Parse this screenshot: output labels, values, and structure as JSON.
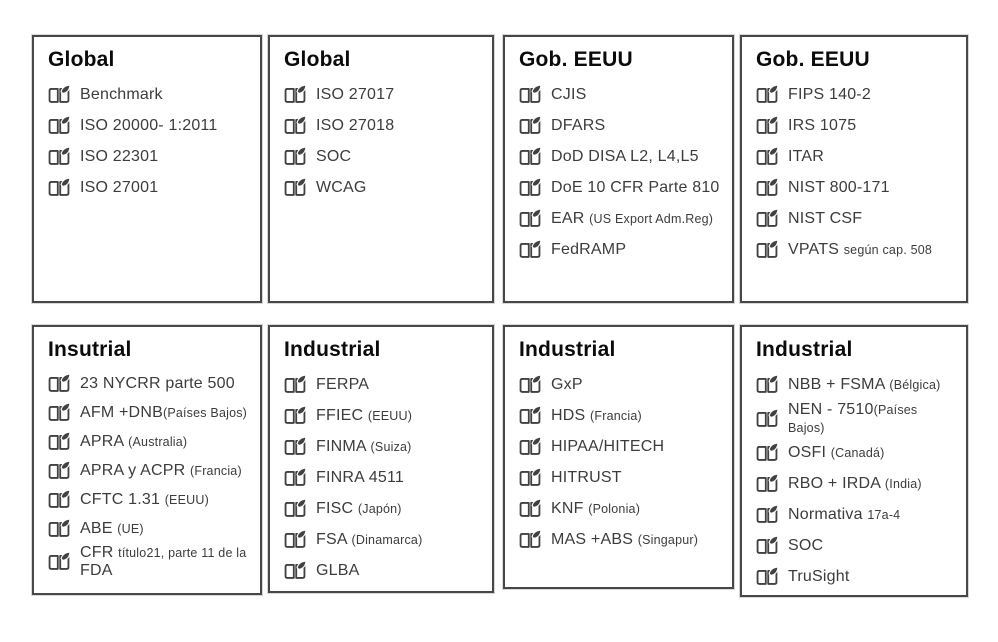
{
  "colors": {
    "background": "#ffffff",
    "card_border": "#474747",
    "title_text": "#0b0b0b",
    "item_text": "#3c3c3c",
    "icon": "#414141"
  },
  "icon_legend": "open-book-icon",
  "cards": [
    {
      "title": "Global",
      "items": [
        {
          "segments": [
            {
              "text": "Benchmark",
              "small": false
            }
          ]
        },
        {
          "segments": [
            {
              "text": "ISO 20000- 1:2011",
              "small": false
            }
          ]
        },
        {
          "segments": [
            {
              "text": "ISO 22301",
              "small": false
            }
          ]
        },
        {
          "segments": [
            {
              "text": "ISO 27001",
              "small": false
            }
          ]
        }
      ]
    },
    {
      "title": "Global",
      "items": [
        {
          "segments": [
            {
              "text": "ISO 27017",
              "small": false
            }
          ]
        },
        {
          "segments": [
            {
              "text": "ISO 27018",
              "small": false
            }
          ]
        },
        {
          "segments": [
            {
              "text": "SOC",
              "small": false
            }
          ]
        },
        {
          "segments": [
            {
              "text": "WCAG",
              "small": false
            }
          ]
        }
      ]
    },
    {
      "title": "Gob. EEUU",
      "items": [
        {
          "segments": [
            {
              "text": "CJIS",
              "small": false
            }
          ]
        },
        {
          "segments": [
            {
              "text": "DFARS",
              "small": false
            }
          ]
        },
        {
          "segments": [
            {
              "text": "DoD DISA L2, L4,L5",
              "small": false
            }
          ]
        },
        {
          "segments": [
            {
              "text": "DoE 10 CFR Parte 810",
              "small": false
            }
          ]
        },
        {
          "segments": [
            {
              "text": "EAR ",
              "small": false
            },
            {
              "text": "(US Export Adm.Reg)",
              "small": true
            }
          ]
        },
        {
          "segments": [
            {
              "text": "FedRAMP",
              "small": false
            }
          ]
        }
      ]
    },
    {
      "title": "Gob. EEUU",
      "items": [
        {
          "segments": [
            {
              "text": "FIPS 140-2",
              "small": false
            }
          ]
        },
        {
          "segments": [
            {
              "text": "IRS 1075",
              "small": false
            }
          ]
        },
        {
          "segments": [
            {
              "text": "ITAR",
              "small": false
            }
          ]
        },
        {
          "segments": [
            {
              "text": "NIST 800-171",
              "small": false
            }
          ]
        },
        {
          "segments": [
            {
              "text": "NIST CSF",
              "small": false
            }
          ]
        },
        {
          "segments": [
            {
              "text": "VPATS ",
              "small": false
            },
            {
              "text": "según cap. 508",
              "small": true
            }
          ]
        }
      ]
    },
    {
      "title": "Insutrial",
      "items": [
        {
          "segments": [
            {
              "text": "23 NYCRR parte 500",
              "small": false
            }
          ]
        },
        {
          "segments": [
            {
              "text": "AFM +DNB",
              "small": false
            },
            {
              "text": "(Países Bajos)",
              "small": true
            }
          ]
        },
        {
          "segments": [
            {
              "text": "APRA ",
              "small": false
            },
            {
              "text": "(Australia)",
              "small": true
            }
          ]
        },
        {
          "segments": [
            {
              "text": "APRA y ACPR ",
              "small": false
            },
            {
              "text": "(Francia)",
              "small": true
            }
          ]
        },
        {
          "segments": [
            {
              "text": "CFTC 1.31 ",
              "small": false
            },
            {
              "text": "(EEUU)",
              "small": true
            }
          ]
        },
        {
          "segments": [
            {
              "text": "ABE ",
              "small": false
            },
            {
              "text": "(UE)",
              "small": true
            }
          ]
        },
        {
          "segments": [
            {
              "text": "CFR ",
              "small": false
            },
            {
              "text": "título21, parte 11 de la ",
              "small": true
            },
            {
              "text": "FDA",
              "small": false
            }
          ]
        }
      ]
    },
    {
      "title": "Industrial",
      "items": [
        {
          "segments": [
            {
              "text": "FERPA",
              "small": false
            }
          ]
        },
        {
          "segments": [
            {
              "text": "FFIEC ",
              "small": false
            },
            {
              "text": "(EEUU)",
              "small": true
            }
          ]
        },
        {
          "segments": [
            {
              "text": "FINMA ",
              "small": false
            },
            {
              "text": "(Suiza)",
              "small": true
            }
          ]
        },
        {
          "segments": [
            {
              "text": "FINRA 4511",
              "small": false
            }
          ]
        },
        {
          "segments": [
            {
              "text": "FISC ",
              "small": false
            },
            {
              "text": "(Japón)",
              "small": true
            }
          ]
        },
        {
          "segments": [
            {
              "text": "FSA ",
              "small": false
            },
            {
              "text": "(Dinamarca)",
              "small": true
            }
          ]
        },
        {
          "segments": [
            {
              "text": "GLBA",
              "small": false
            }
          ]
        }
      ]
    },
    {
      "title": "Industrial",
      "items": [
        {
          "segments": [
            {
              "text": "GxP",
              "small": false
            }
          ]
        },
        {
          "segments": [
            {
              "text": "HDS ",
              "small": false
            },
            {
              "text": "(Francia)",
              "small": true
            }
          ]
        },
        {
          "segments": [
            {
              "text": "HIPAA/HITECH",
              "small": false
            }
          ]
        },
        {
          "segments": [
            {
              "text": "HITRUST",
              "small": false
            }
          ]
        },
        {
          "segments": [
            {
              "text": "KNF ",
              "small": false
            },
            {
              "text": "(Polonia)",
              "small": true
            }
          ]
        },
        {
          "segments": [
            {
              "text": "MAS +ABS ",
              "small": false
            },
            {
              "text": "(Singapur)",
              "small": true
            }
          ]
        }
      ]
    },
    {
      "title": "Industrial",
      "items": [
        {
          "segments": [
            {
              "text": "NBB + FSMA ",
              "small": false
            },
            {
              "text": "(Bélgica)",
              "small": true
            }
          ]
        },
        {
          "segments": [
            {
              "text": "NEN - 7510",
              "small": false
            },
            {
              "text": "(Países Bajos)",
              "small": true
            }
          ]
        },
        {
          "segments": [
            {
              "text": "OSFI ",
              "small": false
            },
            {
              "text": "(Canadá)",
              "small": true
            }
          ]
        },
        {
          "segments": [
            {
              "text": "RBO + IRDA ",
              "small": false
            },
            {
              "text": "(India)",
              "small": true
            }
          ]
        },
        {
          "segments": [
            {
              "text": "Normativa ",
              "small": false
            },
            {
              "text": "17a-4",
              "small": true
            }
          ]
        },
        {
          "segments": [
            {
              "text": "SOC",
              "small": false
            }
          ]
        },
        {
          "segments": [
            {
              "text": "TruSight",
              "small": false
            }
          ]
        }
      ]
    }
  ]
}
